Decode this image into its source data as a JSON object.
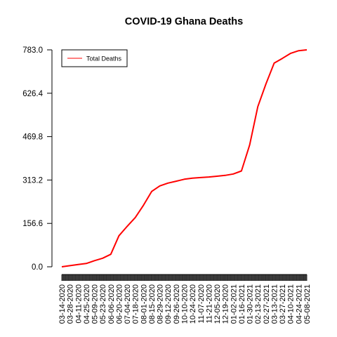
{
  "chart_data": {
    "type": "line",
    "title": "COVID-19 Ghana Deaths",
    "xlabel": "",
    "ylabel": "",
    "ylim": [
      0,
      783
    ],
    "yticks": [
      "0.0",
      "156.6",
      "313.2",
      "469.8",
      "626.4",
      "783.0"
    ],
    "x_tick_labels": [
      "03-14-2020",
      "03-28-2020",
      "04-11-2020",
      "04-25-2020",
      "05-09-2020",
      "05-23-2020",
      "06-06-2020",
      "06-20-2020",
      "07-04-2020",
      "07-18-2020",
      "08-01-2020",
      "08-15-2020",
      "08-29-2020",
      "09-12-2020",
      "09-26-2020",
      "10-10-2020",
      "10-24-2020",
      "11-07-2020",
      "11-21-2020",
      "12-05-2020",
      "12-19-2020",
      "01-02-2021",
      "01-16-2021",
      "01-30-2021",
      "02-13-2021",
      "02-27-2021",
      "03-13-2021",
      "03-27-2021",
      "04-10-2021",
      "04-24-2021",
      "05-08-2021"
    ],
    "grid": false,
    "legend_position": "top-left",
    "series": [
      {
        "name": "Total Deaths",
        "color": "#ff0000",
        "x": [
          "03-14-2020",
          "03-28-2020",
          "04-11-2020",
          "04-25-2020",
          "05-09-2020",
          "05-23-2020",
          "06-06-2020",
          "06-20-2020",
          "07-04-2020",
          "07-18-2020",
          "08-01-2020",
          "08-15-2020",
          "08-29-2020",
          "09-12-2020",
          "09-26-2020",
          "10-10-2020",
          "10-24-2020",
          "11-07-2020",
          "11-21-2020",
          "12-05-2020",
          "12-19-2020",
          "01-02-2021",
          "01-16-2021",
          "01-30-2021",
          "02-13-2021",
          "02-27-2021",
          "03-13-2021",
          "03-27-2021",
          "04-10-2021",
          "04-24-2021",
          "05-08-2021"
        ],
        "values": [
          0,
          4,
          8,
          12,
          22,
          31,
          45,
          112,
          146,
          178,
          222,
          272,
          292,
          302,
          309,
          316,
          320,
          322,
          324,
          327,
          330,
          335,
          346,
          440,
          578,
          660,
          735,
          752,
          770,
          780,
          783
        ]
      }
    ]
  }
}
